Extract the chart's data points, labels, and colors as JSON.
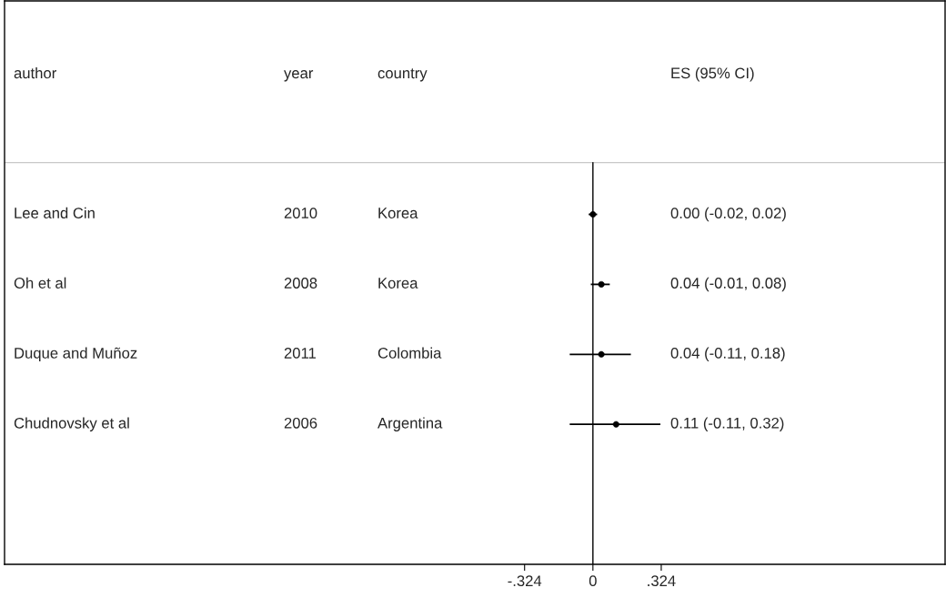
{
  "chart_data": {
    "type": "scatter",
    "orientation": "horizontal",
    "categories": [
      "Lee and Cin",
      "Oh et al",
      "Duque and Muñoz",
      "Chudnovsky et al"
    ],
    "series": [
      {
        "color": "#000000",
        "values": [
          0.0,
          0.04,
          0.04,
          0.11
        ],
        "errors": [
          [
            -0.02,
            0.02
          ],
          [
            -0.01,
            0.08
          ],
          [
            -0.11,
            0.18
          ],
          [
            -0.11,
            0.32
          ]
        ]
      }
    ],
    "marker": "circle",
    "xlim": [
      -2.79,
      1.67
    ],
    "xticks": [
      {
        "value": -0.324,
        "label": "-.324"
      },
      0,
      {
        "value": 0.324,
        "label": ".324"
      }
    ],
    "tick_labels": "x",
    "grid": false,
    "legend": false,
    "ref_lines": [
      {
        "axis": "x",
        "value": 0,
        "color": "#000000"
      }
    ],
    "annotations": [
      "author",
      "year",
      "country",
      "ES (95% CI)",
      "2010",
      "Korea",
      "0.00 (-0.02, 0.02)",
      "2008",
      "Korea",
      "0.04 (-0.01, 0.08)",
      "2011",
      "Colombia",
      "0.04 (-0.11, 0.18)",
      "2006",
      "Argentina",
      "0.11 (-0.11, 0.32)"
    ]
  }
}
